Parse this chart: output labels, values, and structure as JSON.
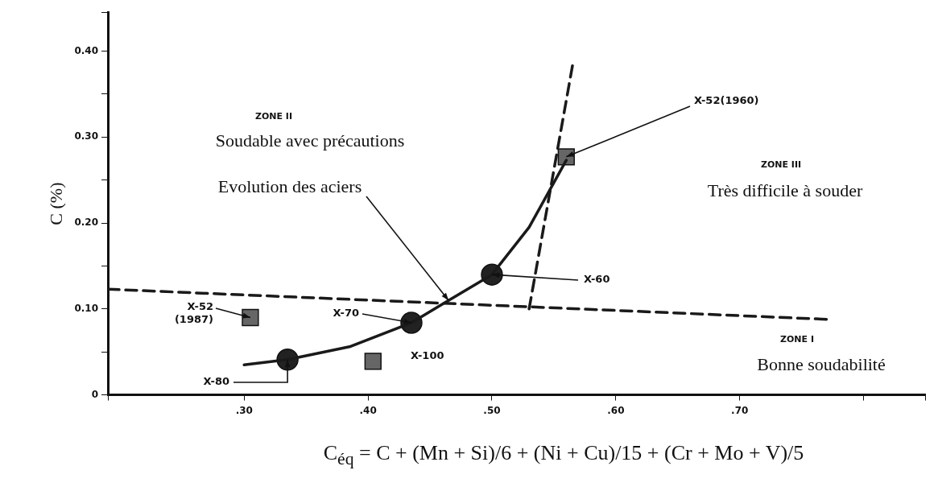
{
  "chart_data": {
    "type": "scatter",
    "xlabel": "C$_{éq}$ = C + (Mn + Si)/6 + (Ni + Cu)/15 + (Cr + Mo + V)/5",
    "ylabel": "C (%)",
    "xlim": [
      0.19,
      0.85
    ],
    "ylim": [
      0,
      0.445
    ],
    "xticks": [
      {
        "value": 0.3,
        "label": ".30"
      },
      {
        "value": 0.4,
        "label": ".40"
      },
      {
        "value": 0.5,
        "label": ".50"
      },
      {
        "value": 0.6,
        "label": ".60"
      },
      {
        "value": 0.7,
        "label": ".70"
      }
    ],
    "yticks": [
      {
        "value": 0,
        "label": "0"
      },
      {
        "value": 0.1,
        "label": "0.10"
      },
      {
        "value": 0.2,
        "label": "0.20"
      },
      {
        "value": 0.3,
        "label": "0.30"
      },
      {
        "value": 0.4,
        "label": "0.40"
      }
    ],
    "series": [
      {
        "type": "line",
        "line_style": "dashed",
        "color": "#1a1a1a",
        "x": [
          0.19,
          0.77
        ],
        "values": [
          0.123,
          0.088
        ]
      },
      {
        "type": "line",
        "line_style": "dashed",
        "color": "#1a1a1a",
        "x": [
          0.53,
          0.565
        ],
        "values": [
          0.1,
          0.383
        ]
      },
      {
        "type": "line",
        "line_style": "solid",
        "color": "#1a1a1a",
        "x": [
          0.56,
          0.53,
          0.5,
          0.465,
          0.435,
          0.385,
          0.335,
          0.3
        ],
        "values": [
          0.273,
          0.195,
          0.14,
          0.11,
          0.084,
          0.056,
          0.041,
          0.035
        ]
      },
      {
        "type": "scatter",
        "marker": "square",
        "color": "#666666",
        "x": [
          0.56,
          0.305,
          0.404
        ],
        "values": [
          0.277,
          0.09,
          0.039
        ]
      },
      {
        "type": "scatter",
        "marker": "circle",
        "color": "#222222",
        "x": [
          0.5,
          0.435,
          0.335
        ],
        "values": [
          0.14,
          0.084,
          0.041
        ]
      }
    ],
    "annotations": [
      "ZONE II",
      "Soudable avec précautions",
      {
        "text": "Evolution des aciers",
        "x": 0.465,
        "y": 0.11
      },
      "ZONE III",
      "Très difficile à souder",
      "ZONE I",
      "Bonne soudabilité",
      {
        "text": "X-52(1960)",
        "x": 0.56,
        "y": 0.277
      },
      {
        "text": "X-60",
        "x": 0.5,
        "y": 0.14
      },
      {
        "text": "X-70",
        "x": 0.435,
        "y": 0.084
      },
      {
        "text": "X-80",
        "x": 0.335,
        "y": 0.041
      },
      "X-100",
      {
        "text": "X-52\n(1987)",
        "x": 0.305,
        "y": 0.09
      }
    ]
  }
}
